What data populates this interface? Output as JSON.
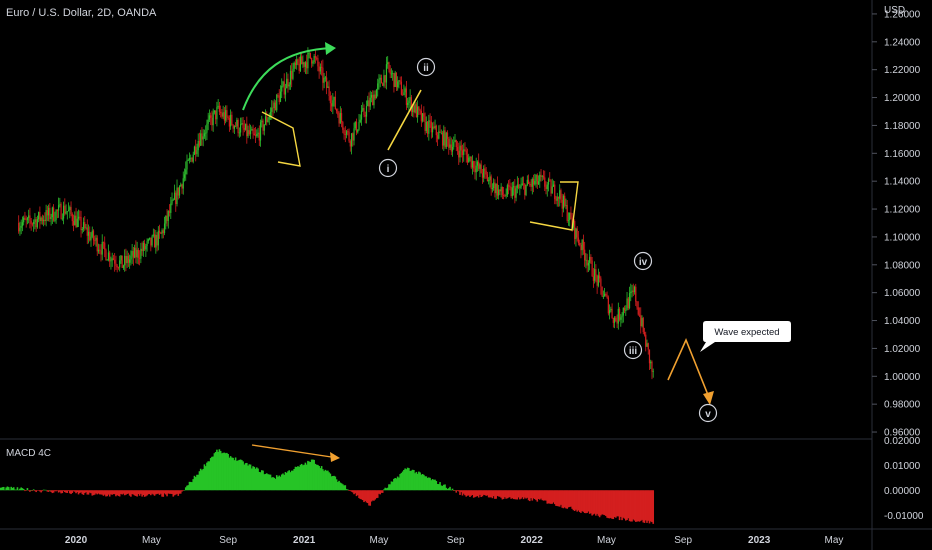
{
  "header": {
    "title": "Euro / U.S. Dollar, 2D, OANDA",
    "currency": "USD"
  },
  "colors": {
    "background": "#000000",
    "up": "#26a69a",
    "candle_up": "#2ebd2e",
    "candle_down": "#d61f1f",
    "axis_text": "#d1d4dc",
    "wave_line": "#f5d742",
    "projection": "#f0a030",
    "arrow_green": "#3ddc5a",
    "macd_up": "#26c426",
    "macd_down": "#d41f1f",
    "divider": "#2a2e39"
  },
  "chart_data": [
    {
      "type": "candlestick",
      "title": "Euro / U.S. Dollar, 2D, OANDA",
      "y_axis_label": "USD",
      "y_ticks": [
        "1.26000",
        "1.24000",
        "1.22000",
        "1.20000",
        "1.18000",
        "1.16000",
        "1.14000",
        "1.12000",
        "1.10000",
        "1.08000",
        "1.06000",
        "1.04000",
        "1.02000",
        "1.00000",
        "0.98000",
        "0.96000"
      ],
      "ylim": [
        0.955,
        1.27
      ],
      "x_ticks": [
        "2020",
        "May",
        "Sep",
        "2021",
        "May",
        "Sep",
        "2022",
        "May",
        "Sep",
        "2023",
        "May"
      ],
      "price_path": [
        {
          "date": "2019-10",
          "close": 1.11
        },
        {
          "date": "2019-12",
          "close": 1.12
        },
        {
          "date": "2020-02",
          "close": 1.09
        },
        {
          "date": "2020-03",
          "close": 1.08
        },
        {
          "date": "2020-05",
          "close": 1.1
        },
        {
          "date": "2020-07",
          "close": 1.17
        },
        {
          "date": "2020-08",
          "close": 1.19
        },
        {
          "date": "2020-10",
          "close": 1.17
        },
        {
          "date": "2020-12",
          "close": 1.22
        },
        {
          "date": "2021-01",
          "close": 1.23
        },
        {
          "date": "2021-03",
          "close": 1.17
        },
        {
          "date": "2021-05",
          "close": 1.22
        },
        {
          "date": "2021-07",
          "close": 1.18
        },
        {
          "date": "2021-09",
          "close": 1.16
        },
        {
          "date": "2021-11",
          "close": 1.13
        },
        {
          "date": "2022-01",
          "close": 1.14
        },
        {
          "date": "2022-02",
          "close": 1.13
        },
        {
          "date": "2022-03",
          "close": 1.1
        },
        {
          "date": "2022-05",
          "close": 1.04
        },
        {
          "date": "2022-06",
          "close": 1.06
        },
        {
          "date": "2022-07",
          "close": 1.0
        }
      ],
      "wave_labels": [
        "i",
        "ii",
        "iii",
        "iv",
        "v"
      ],
      "annotation": "Wave expected"
    },
    {
      "type": "bar",
      "title": "MACD 4C",
      "y_ticks": [
        "0.02000",
        "0.01000",
        "0.00000",
        "-0.01000"
      ],
      "ylim": [
        -0.0155,
        0.0205
      ],
      "description_values": [
        {
          "date": "2020-02",
          "value": -0.002
        },
        {
          "date": "2020-06",
          "value": -0.002
        },
        {
          "date": "2020-08",
          "value": 0.016
        },
        {
          "date": "2020-11",
          "value": 0.005
        },
        {
          "date": "2021-01",
          "value": 0.012
        },
        {
          "date": "2021-04",
          "value": -0.006
        },
        {
          "date": "2021-06",
          "value": 0.009
        },
        {
          "date": "2021-09",
          "value": -0.002
        },
        {
          "date": "2022-01",
          "value": -0.004
        },
        {
          "date": "2022-04",
          "value": -0.01
        },
        {
          "date": "2022-07",
          "value": -0.013
        }
      ]
    }
  ],
  "callout": {
    "text": "Wave expected"
  },
  "waves": {
    "i": "i",
    "ii": "ii",
    "iii": "iii",
    "iv": "iv",
    "v": "v"
  }
}
